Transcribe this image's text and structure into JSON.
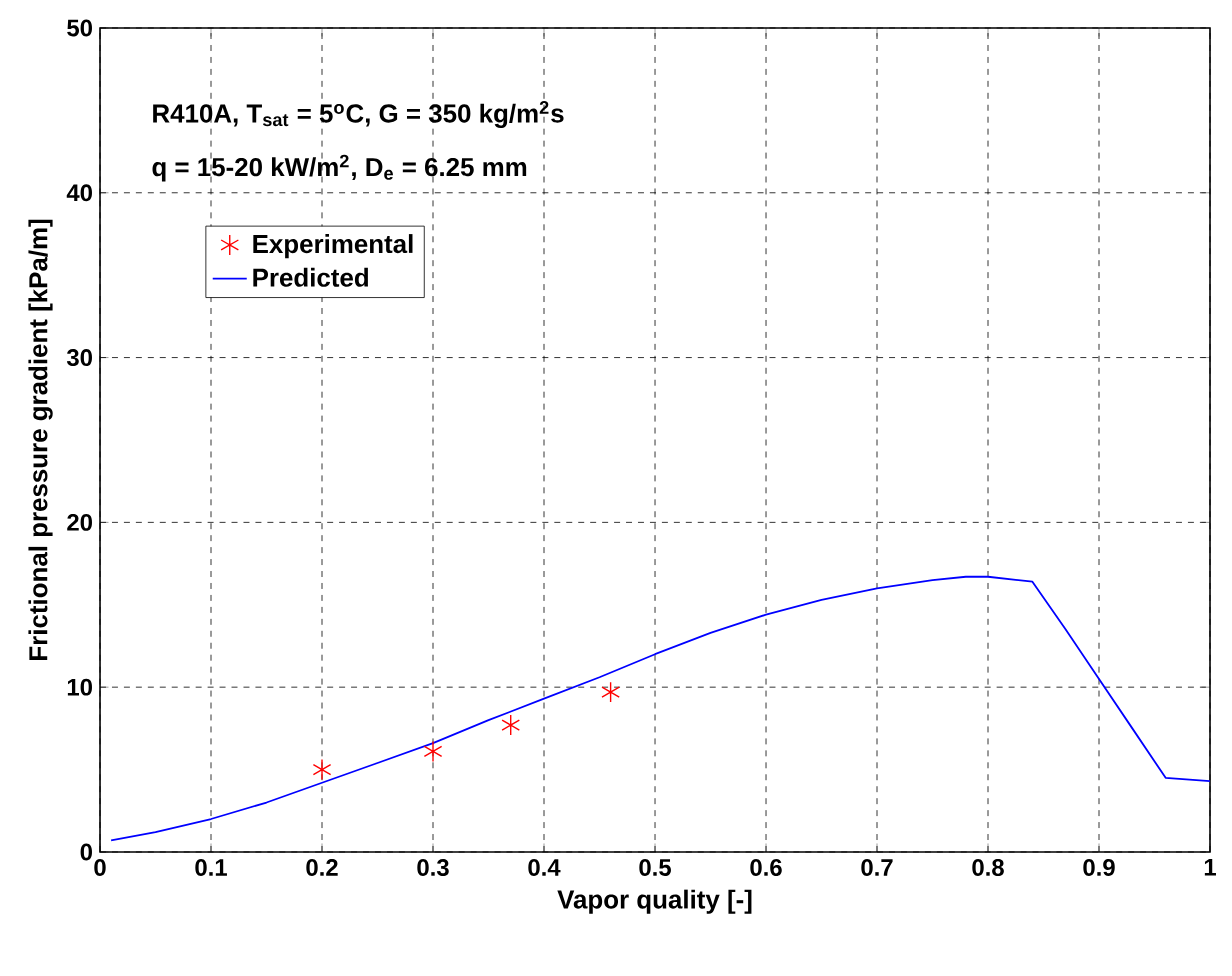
{
  "chart_data": {
    "type": "line",
    "xlabel": "Vapor quality [-]",
    "ylabel": "Frictional pressure gradient [kPa/m]",
    "annotations": [
      "R410A, T$_{sat}$ = 5$^{o}$C,  G = 350 kg/m$^{2}$s",
      "q = 15-20 kW/m$^{2}$, D$_{e}$ = 6.25 mm"
    ],
    "xlim": [
      0,
      1
    ],
    "ylim": [
      0,
      50
    ],
    "xticks": [
      0,
      0.1,
      0.2,
      0.3,
      0.4,
      0.5,
      0.6,
      0.7,
      0.8,
      0.9,
      1
    ],
    "yticks": [
      0,
      10,
      20,
      30,
      40,
      50
    ],
    "grid": true,
    "legend": "top left",
    "series": [
      {
        "name": "Experimental",
        "type": "scatter",
        "marker": "cross",
        "color": "#ff0000",
        "x": [
          0.2,
          0.3,
          0.37,
          0.46
        ],
        "values": [
          5.0,
          6.1,
          7.7,
          9.7
        ]
      },
      {
        "name": "Predicted",
        "marker": "none",
        "line_style": "solid",
        "color": "#0000ff",
        "x": [
          0.01,
          0.05,
          0.1,
          0.15,
          0.2,
          0.25,
          0.3,
          0.35,
          0.4,
          0.45,
          0.5,
          0.55,
          0.6,
          0.65,
          0.7,
          0.75,
          0.78,
          0.8,
          0.84,
          0.87,
          0.9,
          0.93,
          0.96,
          1.0
        ],
        "values": [
          0.7,
          1.2,
          2.0,
          3.0,
          4.2,
          5.4,
          6.6,
          8.0,
          9.3,
          10.6,
          12.0,
          13.3,
          14.4,
          15.3,
          16.0,
          16.5,
          16.7,
          16.7,
          16.4,
          13.5,
          10.5,
          7.5,
          4.5,
          4.3
        ]
      }
    ]
  }
}
